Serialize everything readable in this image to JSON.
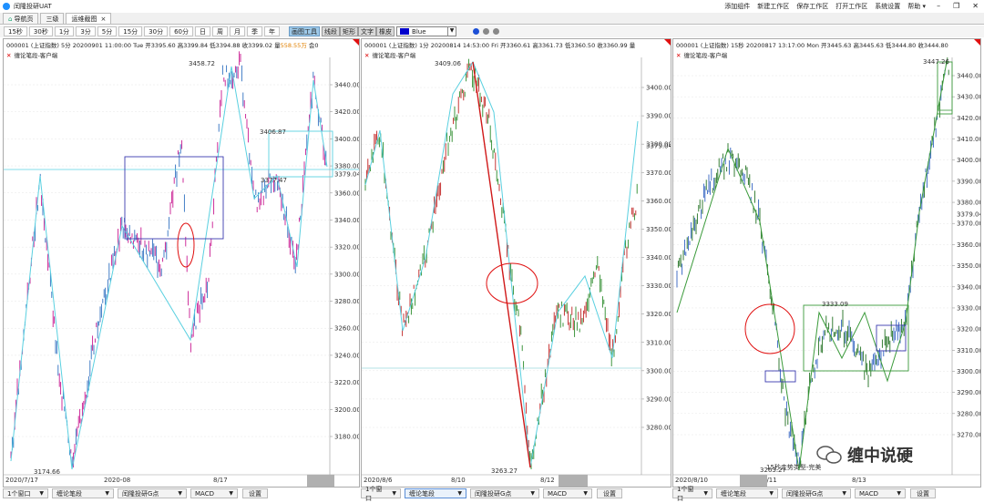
{
  "app": {
    "title": "闰隆投研UAT"
  },
  "top_menu": [
    "添加组件",
    "新建工作区",
    "保存工作区",
    "打开工作区",
    "系统设置",
    "帮助"
  ],
  "window_controls": [
    "minimize-icon",
    "restore-icon",
    "close-icon"
  ],
  "tabs": [
    {
      "label": "导航页"
    },
    {
      "label": "三级"
    },
    {
      "label": "运维截图"
    }
  ],
  "tab_close": "×",
  "periods": [
    "15秒",
    "30秒",
    "1分",
    "3分",
    "5分",
    "15分",
    "30分",
    "60分",
    "日",
    "周",
    "月",
    "季",
    "年"
  ],
  "draw_tools": {
    "main": "画图工具",
    "line": "线段",
    "rect": "矩形",
    "text": "文字",
    "eraser": "橡皮"
  },
  "color_select": {
    "value": "Blue",
    "swatch": "#0000cc"
  },
  "panels": [
    {
      "header_pre": "000001 (上证指数) 5分 20200901 11:00:00 Tue  开3395.60 高3399.84 低3394.88 收3399.02 量",
      "amount": "558.55万",
      "header_post": " 会0",
      "subtitle": "缠论笔段-客户端",
      "y_labels": [
        "3440.00",
        "3420.00",
        "3400.00",
        "3380.00",
        "3360.00",
        "3340.00",
        "3320.00",
        "3300.00",
        "3280.00",
        "3260.00",
        "3240.00",
        "3220.00",
        "3200.00",
        "3180.00"
      ],
      "highlight_price": "3379.04",
      "x_labels": [
        "2020/7/17",
        "2020-08",
        "8/17"
      ],
      "annotations": [
        "3458.72",
        "3406.87",
        "3377.47",
        "3174.66"
      ]
    },
    {
      "header_pre": "000001 (上证指数) 1分 20200814 14:53:00 Fri  开3360.61 高3361.73 低3360.50 收3360.99 量",
      "amount": "",
      "header_post": "",
      "subtitle": "缠论笔段-客户端",
      "y_labels": [
        "3400.00",
        "3390.00",
        "3380.00",
        "3370.00",
        "3360.00",
        "3350.00",
        "3340.00",
        "3330.00",
        "3320.00",
        "3310.00",
        "3300.00",
        "3290.00",
        "3280.00"
      ],
      "highlight_price": "3379.04",
      "x_labels": [
        "2020/8/6",
        "8/10",
        "8/12"
      ],
      "annotations": [
        "3409.06",
        "3263.27"
      ]
    },
    {
      "header_pre": "000001 (上证指数) 15秒 20200817 13:17:00 Mon  开3445.63 高3445.63 低3444.80 收3444.80",
      "amount": "",
      "header_post": "",
      "subtitle": "缠论笔段-客户端",
      "y_labels": [
        "3440.00",
        "3430.00",
        "3420.00",
        "3410.00",
        "3400.00",
        "3390.00",
        "3380.00",
        "3370.00",
        "3360.00",
        "3350.00",
        "3340.00",
        "3330.00",
        "3320.00",
        "3310.00",
        "3300.00",
        "3290.00",
        "3280.00",
        "3270.00"
      ],
      "highlight_price": "3379.04",
      "x_labels": [
        "2020/8/10",
        "8/11",
        "8/13"
      ],
      "annotations": [
        "3447.26",
        "3333.09",
        "3263.27",
        "15秒走势类型-完美"
      ]
    }
  ],
  "footer_groups": [
    {
      "window": "1个窗口",
      "indicator": "缠论笔段",
      "gpoint": "闰隆投研G点",
      "osc": "MACD",
      "settings": "设置"
    },
    {
      "window": "1个窗口",
      "indicator": "缠论笔段",
      "gpoint": "闰隆投研G点",
      "osc": "MACD",
      "settings": "设置"
    },
    {
      "window": "1个窗口",
      "indicator": "缠论笔段",
      "gpoint": "闰隆投研G点",
      "osc": "MACD",
      "settings": "设置"
    }
  ],
  "watermark": "缠中说硬"
}
